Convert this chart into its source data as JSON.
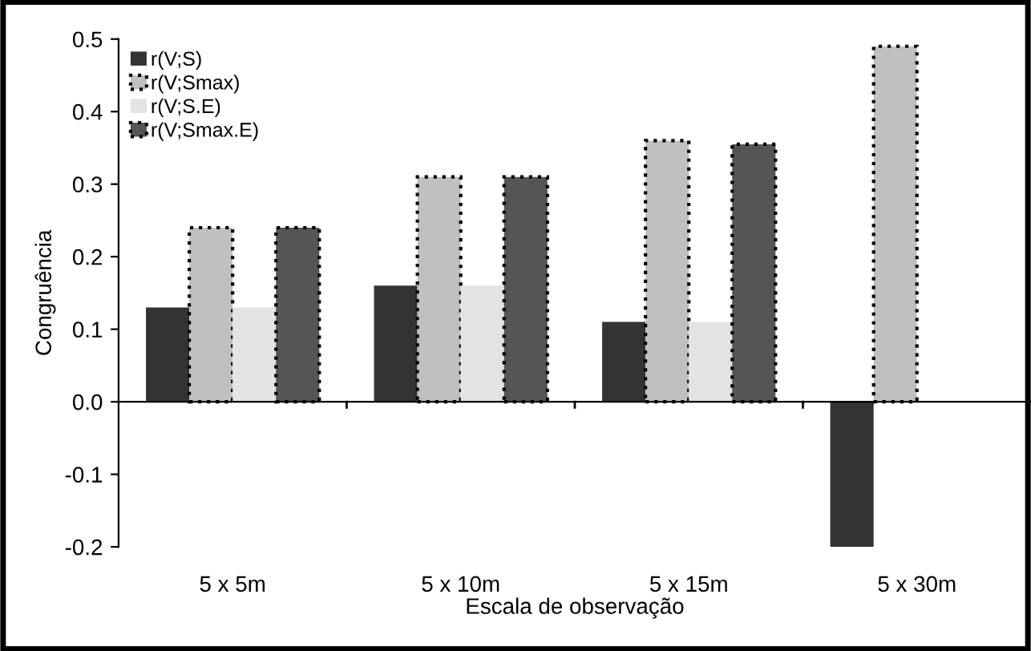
{
  "chart_data": {
    "type": "bar",
    "xlabel": "Escala de observação",
    "ylabel": "Congruência",
    "categories": [
      "5 x 5m",
      "5 x 10m",
      "5 x 15m",
      "5 x 30m"
    ],
    "series": [
      {
        "name": "r(V;S)",
        "color": "#333333",
        "values": [
          0.13,
          0.16,
          0.11,
          -0.2
        ]
      },
      {
        "name": "r(V;Smax)",
        "color": "#c0c0c0",
        "line_style": "dotted",
        "values": [
          0.24,
          0.31,
          0.36,
          0.49
        ]
      },
      {
        "name": "r(V;S.E)",
        "color": "#e3e3e3",
        "values": [
          0.13,
          0.16,
          0.11,
          null
        ]
      },
      {
        "name": "r(V;Smax.E)",
        "color": "#555555",
        "line_style": "dotted",
        "values": [
          0.24,
          0.31,
          0.355,
          null
        ]
      }
    ],
    "ylim": [
      -0.2,
      0.5
    ],
    "yticks": [
      {
        "value": -0.2,
        "label": "-0.2"
      },
      {
        "value": -0.1,
        "label": "-0.1"
      },
      {
        "value": 0,
        "label": "0.0"
      },
      {
        "value": 0.1,
        "label": "0.1"
      },
      {
        "value": 0.2,
        "label": "0.2"
      },
      {
        "value": 0.3,
        "label": "0.3"
      },
      {
        "value": 0.4,
        "label": "0.4"
      },
      {
        "value": 0.5,
        "label": "0.5"
      }
    ],
    "legend": "top left"
  }
}
